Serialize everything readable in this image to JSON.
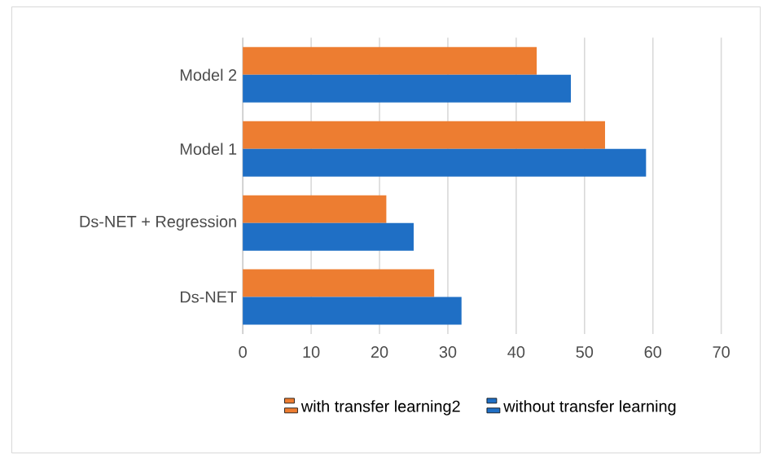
{
  "chart_data": {
    "type": "bar",
    "orientation": "horizontal",
    "categories": [
      "Model 2",
      "Model 1",
      "Ds-NET + Regression",
      "Ds-NET"
    ],
    "series": [
      {
        "name": "with transfer learning2",
        "color": "#ed7d31",
        "values": [
          43,
          53,
          21,
          28
        ]
      },
      {
        "name": "without transfer learning",
        "color": "#1f6fc5",
        "values": [
          48,
          59,
          25,
          32
        ]
      }
    ],
    "xlim": [
      0,
      70
    ],
    "xticks": [
      0,
      10,
      20,
      30,
      40,
      50,
      60,
      70
    ],
    "grid": "x",
    "legend": "bottom"
  }
}
